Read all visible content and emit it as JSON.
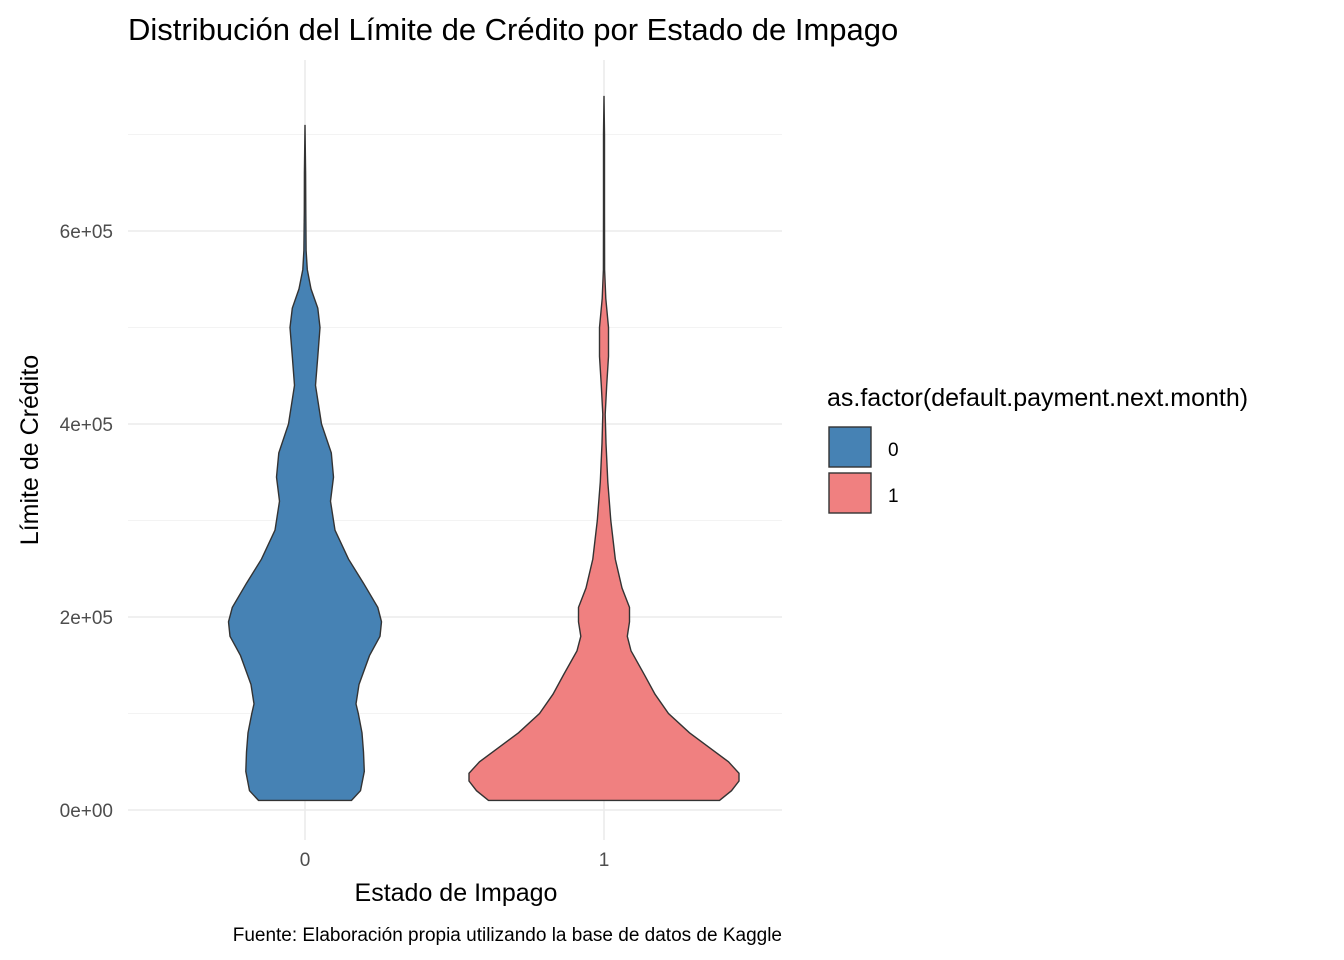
{
  "chart_data": {
    "type": "violin",
    "title": "Distribución del Límite de Crédito por Estado de Impago",
    "xlabel": "Estado de Impago",
    "ylabel": "Límite de Crédito",
    "caption": "Fuente: Elaboración propia utilizando la base de datos de Kaggle",
    "categories": [
      "0",
      "1"
    ],
    "y_ticks": [
      0,
      200000,
      400000,
      600000
    ],
    "y_tick_labels": [
      "0e+00",
      "2e+05",
      "4e+05",
      "6e+05"
    ],
    "ylim": [
      -15000,
      775000
    ],
    "grid": true,
    "legend": {
      "title": "as.factor(default.payment.next.month)",
      "placement": "right",
      "entries": [
        {
          "label": "0",
          "color": "#4682B4"
        },
        {
          "label": "1",
          "color": "#F08080"
        }
      ]
    },
    "series": [
      {
        "category": "0",
        "color": "#4682B4",
        "density_profile": [
          [
            10000,
            0.31
          ],
          [
            20000,
            0.37
          ],
          [
            40000,
            0.395
          ],
          [
            60000,
            0.39
          ],
          [
            80000,
            0.38
          ],
          [
            100000,
            0.355
          ],
          [
            110000,
            0.34
          ],
          [
            130000,
            0.36
          ],
          [
            160000,
            0.43
          ],
          [
            180000,
            0.5
          ],
          [
            195000,
            0.51
          ],
          [
            210000,
            0.485
          ],
          [
            235000,
            0.39
          ],
          [
            260000,
            0.29
          ],
          [
            290000,
            0.2
          ],
          [
            320000,
            0.17
          ],
          [
            345000,
            0.19
          ],
          [
            370000,
            0.175
          ],
          [
            400000,
            0.11
          ],
          [
            440000,
            0.07
          ],
          [
            470000,
            0.085
          ],
          [
            500000,
            0.1
          ],
          [
            520000,
            0.085
          ],
          [
            540000,
            0.04
          ],
          [
            560000,
            0.015
          ],
          [
            580000,
            0.007
          ],
          [
            620000,
            0.005
          ],
          [
            660000,
            0.004
          ],
          [
            710000,
            0
          ]
        ]
      },
      {
        "category": "1",
        "color": "#F08080",
        "density_profile": [
          [
            10000,
            0.77
          ],
          [
            20000,
            0.85
          ],
          [
            30000,
            0.9
          ],
          [
            38000,
            0.9
          ],
          [
            50000,
            0.83
          ],
          [
            65000,
            0.7
          ],
          [
            80000,
            0.57
          ],
          [
            100000,
            0.43
          ],
          [
            120000,
            0.34
          ],
          [
            140000,
            0.27
          ],
          [
            165000,
            0.18
          ],
          [
            180000,
            0.155
          ],
          [
            195000,
            0.17
          ],
          [
            210000,
            0.17
          ],
          [
            230000,
            0.12
          ],
          [
            260000,
            0.075
          ],
          [
            300000,
            0.045
          ],
          [
            340000,
            0.025
          ],
          [
            380000,
            0.013
          ],
          [
            410000,
            0.008
          ],
          [
            440000,
            0.018
          ],
          [
            470000,
            0.03
          ],
          [
            500000,
            0.03
          ],
          [
            530000,
            0.012
          ],
          [
            560000,
            0.004
          ],
          [
            620000,
            0.003
          ],
          [
            700000,
            0.003
          ],
          [
            740000,
            0
          ]
        ]
      }
    ]
  }
}
